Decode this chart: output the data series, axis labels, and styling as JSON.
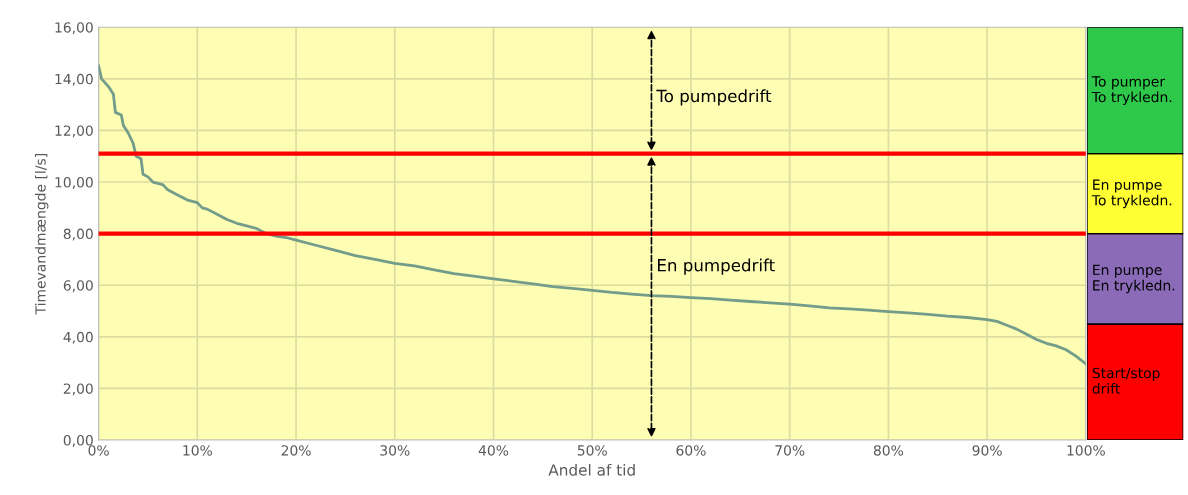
{
  "chart_data": [
    {
      "type": "line",
      "xlabel": "Andel af tid",
      "ylabel": "Timevandmængde [l/s]",
      "xlim": [
        0,
        100
      ],
      "ylim": [
        0,
        16
      ],
      "xticks": [
        {
          "value": 0,
          "label": "0%"
        },
        {
          "value": 10,
          "label": "10%"
        },
        {
          "value": 20,
          "label": "20%"
        },
        {
          "value": 30,
          "label": "30%"
        },
        {
          "value": 40,
          "label": "40%"
        },
        {
          "value": 50,
          "label": "50%"
        },
        {
          "value": 60,
          "label": "60%"
        },
        {
          "value": 70,
          "label": "70%"
        },
        {
          "value": 80,
          "label": "80%"
        },
        {
          "value": 90,
          "label": "90%"
        },
        {
          "value": 100,
          "label": "100%"
        }
      ],
      "yticks": [
        {
          "value": 0,
          "label": "0,00"
        },
        {
          "value": 2,
          "label": "2,00"
        },
        {
          "value": 4,
          "label": "4,00"
        },
        {
          "value": 6,
          "label": "6,00"
        },
        {
          "value": 8,
          "label": "8,00"
        },
        {
          "value": 10,
          "label": "10,00"
        },
        {
          "value": 12,
          "label": "12,00"
        },
        {
          "value": 14,
          "label": "14,00"
        },
        {
          "value": 16,
          "label": "16,00"
        }
      ],
      "grid": true,
      "marker": "none",
      "line_style": "solid",
      "x": [
        0,
        0.3,
        1,
        1.5,
        1.7,
        2.3,
        2.5,
        3,
        3.5,
        3.8,
        4.3,
        4.5,
        5,
        5.5,
        6.5,
        7,
        8,
        9,
        10,
        10.5,
        11,
        12,
        13,
        14,
        15,
        16,
        17,
        18,
        19,
        20,
        22,
        24,
        26,
        28,
        30,
        32,
        34,
        36,
        38,
        40,
        42,
        44,
        46,
        48,
        50,
        52,
        54,
        56,
        58,
        60,
        62,
        64,
        66,
        68,
        70,
        72,
        74,
        76,
        78,
        80,
        82,
        84,
        86,
        88,
        90,
        91,
        92,
        93,
        94,
        95,
        96,
        97,
        98,
        99,
        100
      ],
      "series": [
        {
          "color": "#739c8a",
          "values": [
            14.5,
            14.0,
            13.7,
            13.4,
            12.7,
            12.6,
            12.2,
            11.9,
            11.5,
            11.0,
            10.9,
            10.3,
            10.2,
            10.0,
            9.9,
            9.7,
            9.5,
            9.3,
            9.2,
            9.0,
            8.95,
            8.75,
            8.55,
            8.4,
            8.3,
            8.2,
            8.0,
            7.9,
            7.85,
            7.75,
            7.55,
            7.35,
            7.15,
            7.0,
            6.85,
            6.75,
            6.6,
            6.45,
            6.35,
            6.25,
            6.15,
            6.05,
            5.95,
            5.88,
            5.8,
            5.72,
            5.66,
            5.6,
            5.57,
            5.52,
            5.48,
            5.42,
            5.37,
            5.32,
            5.27,
            5.2,
            5.12,
            5.08,
            5.04,
            4.98,
            4.93,
            4.87,
            4.8,
            4.75,
            4.67,
            4.6,
            4.45,
            4.3,
            4.1,
            3.9,
            3.75,
            3.65,
            3.5,
            3.25,
            2.95
          ]
        }
      ],
      "ref_lines": [
        {
          "axis": "y",
          "value": 11.1,
          "color": "#ff0000"
        },
        {
          "axis": "y",
          "value": 8.0,
          "color": "#ff0000"
        }
      ],
      "annotations": [
        "To pumpedrift",
        "En pumpedrift"
      ]
    },
    {
      "type": "bar",
      "stacked": true,
      "categories": [
        null
      ],
      "ylim": [
        0,
        16
      ],
      "tick_labels": false,
      "series": [
        {
          "name": "Start/stop\ndrift",
          "color": "#ff0000",
          "values": [
            4.5
          ]
        },
        {
          "name": "En pumpe\nEn trykledn.",
          "color": "#8b6bb8",
          "values": [
            3.5
          ]
        },
        {
          "name": "En pumpe\nTo trykledn.",
          "color": "#ffff33",
          "values": [
            3.1
          ]
        },
        {
          "name": "To pumper\nTo trykledn.",
          "color": "#2ec94a",
          "values": [
            4.9
          ]
        }
      ]
    }
  ]
}
